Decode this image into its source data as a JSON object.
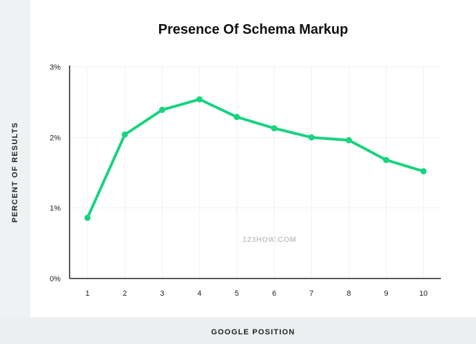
{
  "chart_data": {
    "type": "line",
    "title": "Presence Of Schema Markup",
    "xlabel": "GOOGLE POSITION",
    "ylabel": "PERCENT OF RESULTS",
    "x": [
      1,
      2,
      3,
      4,
      5,
      6,
      7,
      8,
      9,
      10
    ],
    "x_tick_labels": [
      "1",
      "2",
      "3",
      "4",
      "5",
      "6",
      "7",
      "8",
      "9",
      "10"
    ],
    "series": [
      {
        "values": [
          0.86,
          2.04,
          2.39,
          2.54,
          2.29,
          2.13,
          2.0,
          1.96,
          1.68,
          1.52
        ]
      }
    ],
    "ylim": [
      0,
      3
    ],
    "y_ticks": [
      0,
      1,
      2,
      3
    ],
    "y_tick_labels": [
      "0%",
      "1%",
      "2%",
      "3%"
    ],
    "grid": true,
    "line_color": "#18d37f",
    "watermark": "123HOW.COM"
  }
}
